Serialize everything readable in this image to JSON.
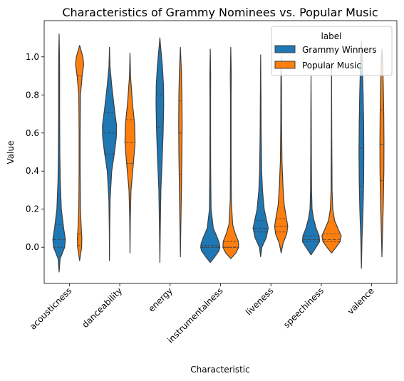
{
  "chart_data": {
    "type": "violin",
    "title": "Characteristics of Grammy Nominees vs. Popular Music",
    "xlabel": "Characteristic",
    "ylabel": "Value",
    "ylim": [
      -0.19,
      1.19
    ],
    "yticks": [
      0.0,
      0.2,
      0.4,
      0.6,
      0.8,
      1.0
    ],
    "ytick_labels": [
      "0.0",
      "0.2",
      "0.4",
      "0.6",
      "0.8",
      "1.0"
    ],
    "categories": [
      "acousticness",
      "danceability",
      "energy",
      "instrumentalness",
      "liveness",
      "speechiness",
      "valence"
    ],
    "legend": {
      "title": "label",
      "position": "top-right",
      "entries": [
        {
          "name": "Grammy Winners",
          "color": "#1f77b4"
        },
        {
          "name": "Popular Music",
          "color": "#ff7f0e"
        }
      ]
    },
    "series": [
      {
        "name": "Grammy Winners",
        "color": "#1f77b4",
        "distributions": [
          {
            "min": -0.13,
            "max": 1.12,
            "median": 0.04,
            "q1": 0.0,
            "q3": 0.12,
            "density": [
              [
                -0.13,
                0.0
              ],
              [
                -0.06,
                0.1
              ],
              [
                0.0,
                0.55
              ],
              [
                0.04,
                0.62
              ],
              [
                0.1,
                0.45
              ],
              [
                0.2,
                0.22
              ],
              [
                0.35,
                0.11
              ],
              [
                0.5,
                0.07
              ],
              [
                0.7,
                0.05
              ],
              [
                0.9,
                0.05
              ],
              [
                1.0,
                0.04
              ],
              [
                1.12,
                0.0
              ]
            ]
          },
          {
            "min": -0.07,
            "max": 1.05,
            "median": 0.6,
            "q1": 0.49,
            "q3": 0.71,
            "density": [
              [
                -0.07,
                0.0
              ],
              [
                0.1,
                0.02
              ],
              [
                0.25,
                0.06
              ],
              [
                0.4,
                0.22
              ],
              [
                0.5,
                0.5
              ],
              [
                0.58,
                0.68
              ],
              [
                0.64,
                0.7
              ],
              [
                0.72,
                0.5
              ],
              [
                0.85,
                0.22
              ],
              [
                0.95,
                0.05
              ],
              [
                1.05,
                0.0
              ]
            ]
          },
          {
            "min": -0.08,
            "max": 1.1,
            "median": 0.63,
            "q1": 0.45,
            "q3": 0.8,
            "density": [
              [
                -0.08,
                0.0
              ],
              [
                0.1,
                0.04
              ],
              [
                0.3,
                0.1
              ],
              [
                0.45,
                0.22
              ],
              [
                0.6,
                0.32
              ],
              [
                0.75,
                0.38
              ],
              [
                0.85,
                0.36
              ],
              [
                0.95,
                0.25
              ],
              [
                1.05,
                0.08
              ],
              [
                1.1,
                0.0
              ]
            ]
          },
          {
            "min": -0.08,
            "max": 1.04,
            "median": 0.0,
            "q1": 0.0,
            "q3": 0.01,
            "density": [
              [
                -0.08,
                0.0
              ],
              [
                -0.05,
                0.45
              ],
              [
                -0.02,
                0.85
              ],
              [
                0.0,
                0.95
              ],
              [
                0.02,
                0.9
              ],
              [
                0.05,
                0.7
              ],
              [
                0.1,
                0.3
              ],
              [
                0.2,
                0.08
              ],
              [
                0.4,
                0.04
              ],
              [
                0.6,
                0.03
              ],
              [
                0.8,
                0.03
              ],
              [
                0.9,
                0.04
              ],
              [
                1.04,
                0.0
              ]
            ]
          },
          {
            "min": -0.05,
            "max": 1.01,
            "median": 0.1,
            "q1": 0.08,
            "q3": 0.14,
            "density": [
              [
                -0.05,
                0.0
              ],
              [
                0.0,
                0.12
              ],
              [
                0.05,
                0.55
              ],
              [
                0.1,
                0.75
              ],
              [
                0.15,
                0.55
              ],
              [
                0.2,
                0.35
              ],
              [
                0.3,
                0.18
              ],
              [
                0.4,
                0.1
              ],
              [
                0.6,
                0.05
              ],
              [
                0.8,
                0.03
              ],
              [
                1.01,
                0.0
              ]
            ]
          },
          {
            "min": -0.04,
            "max": 0.9,
            "median": 0.04,
            "q1": 0.03,
            "q3": 0.06,
            "density": [
              [
                -0.04,
                0.0
              ],
              [
                0.0,
                0.5
              ],
              [
                0.03,
                0.85
              ],
              [
                0.06,
                0.8
              ],
              [
                0.1,
                0.5
              ],
              [
                0.15,
                0.25
              ],
              [
                0.2,
                0.1
              ],
              [
                0.3,
                0.05
              ],
              [
                0.5,
                0.03
              ],
              [
                0.7,
                0.02
              ],
              [
                0.9,
                0.0
              ]
            ]
          },
          {
            "min": -0.11,
            "max": 1.08,
            "median": 0.52,
            "q1": 0.32,
            "q3": 0.7,
            "density": [
              [
                -0.11,
                0.0
              ],
              [
                0.05,
                0.06
              ],
              [
                0.2,
                0.16
              ],
              [
                0.35,
                0.22
              ],
              [
                0.5,
                0.24
              ],
              [
                0.65,
                0.22
              ],
              [
                0.8,
                0.17
              ],
              [
                0.95,
                0.1
              ],
              [
                1.08,
                0.0
              ]
            ]
          }
        ]
      },
      {
        "name": "Popular Music",
        "color": "#ff7f0e",
        "distributions": [
          {
            "min": -0.07,
            "max": 1.06,
            "median": 0.07,
            "q1": 0.01,
            "q3": 0.9,
            "density": [
              [
                -0.07,
                0.0
              ],
              [
                0.0,
                0.2
              ],
              [
                0.05,
                0.22
              ],
              [
                0.1,
                0.16
              ],
              [
                0.2,
                0.08
              ],
              [
                0.4,
                0.05
              ],
              [
                0.6,
                0.05
              ],
              [
                0.8,
                0.08
              ],
              [
                0.9,
                0.25
              ],
              [
                0.96,
                0.4
              ],
              [
                1.0,
                0.32
              ],
              [
                1.06,
                0.0
              ]
            ]
          },
          {
            "min": -0.03,
            "max": 1.02,
            "median": 0.55,
            "q1": 0.44,
            "q3": 0.67,
            "density": [
              [
                -0.03,
                0.0
              ],
              [
                0.15,
                0.03
              ],
              [
                0.3,
                0.1
              ],
              [
                0.45,
                0.35
              ],
              [
                0.55,
                0.5
              ],
              [
                0.65,
                0.45
              ],
              [
                0.75,
                0.25
              ],
              [
                0.9,
                0.05
              ],
              [
                1.02,
                0.0
              ]
            ]
          },
          {
            "min": -0.05,
            "max": 1.05,
            "median": 0.6,
            "q1": 0.38,
            "q3": 0.77,
            "density": [
              [
                -0.05,
                0.0
              ],
              [
                0.1,
                0.04
              ],
              [
                0.3,
                0.1
              ],
              [
                0.5,
                0.15
              ],
              [
                0.65,
                0.17
              ],
              [
                0.8,
                0.15
              ],
              [
                0.92,
                0.1
              ],
              [
                1.05,
                0.0
              ]
            ]
          },
          {
            "min": -0.06,
            "max": 1.05,
            "median": 0.0,
            "q1": 0.0,
            "q3": 0.03,
            "density": [
              [
                -0.06,
                0.0
              ],
              [
                -0.03,
                0.5
              ],
              [
                0.0,
                0.78
              ],
              [
                0.03,
                0.75
              ],
              [
                0.07,
                0.45
              ],
              [
                0.12,
                0.18
              ],
              [
                0.25,
                0.05
              ],
              [
                0.5,
                0.03
              ],
              [
                0.8,
                0.03
              ],
              [
                0.9,
                0.05
              ],
              [
                1.05,
                0.0
              ]
            ]
          },
          {
            "min": -0.03,
            "max": 1.0,
            "median": 0.11,
            "q1": 0.08,
            "q3": 0.15,
            "density": [
              [
                -0.03,
                0.0
              ],
              [
                0.02,
                0.18
              ],
              [
                0.07,
                0.55
              ],
              [
                0.11,
                0.65
              ],
              [
                0.16,
                0.5
              ],
              [
                0.22,
                0.3
              ],
              [
                0.32,
                0.18
              ],
              [
                0.45,
                0.08
              ],
              [
                0.65,
                0.04
              ],
              [
                0.85,
                0.03
              ],
              [
                1.0,
                0.0
              ]
            ]
          },
          {
            "min": -0.03,
            "max": 0.95,
            "median": 0.04,
            "q1": 0.03,
            "q3": 0.07,
            "density": [
              [
                -0.03,
                0.0
              ],
              [
                0.0,
                0.45
              ],
              [
                0.03,
                0.85
              ],
              [
                0.06,
                0.95
              ],
              [
                0.09,
                0.7
              ],
              [
                0.14,
                0.3
              ],
              [
                0.2,
                0.12
              ],
              [
                0.3,
                0.05
              ],
              [
                0.6,
                0.02
              ],
              [
                0.95,
                0.0
              ]
            ]
          },
          {
            "min": -0.05,
            "max": 1.04,
            "median": 0.54,
            "q1": 0.35,
            "q3": 0.72,
            "density": [
              [
                -0.05,
                0.0
              ],
              [
                0.1,
                0.07
              ],
              [
                0.25,
                0.14
              ],
              [
                0.4,
                0.19
              ],
              [
                0.55,
                0.2
              ],
              [
                0.7,
                0.18
              ],
              [
                0.85,
                0.13
              ],
              [
                0.97,
                0.07
              ],
              [
                1.04,
                0.0
              ]
            ]
          }
        ]
      }
    ]
  }
}
